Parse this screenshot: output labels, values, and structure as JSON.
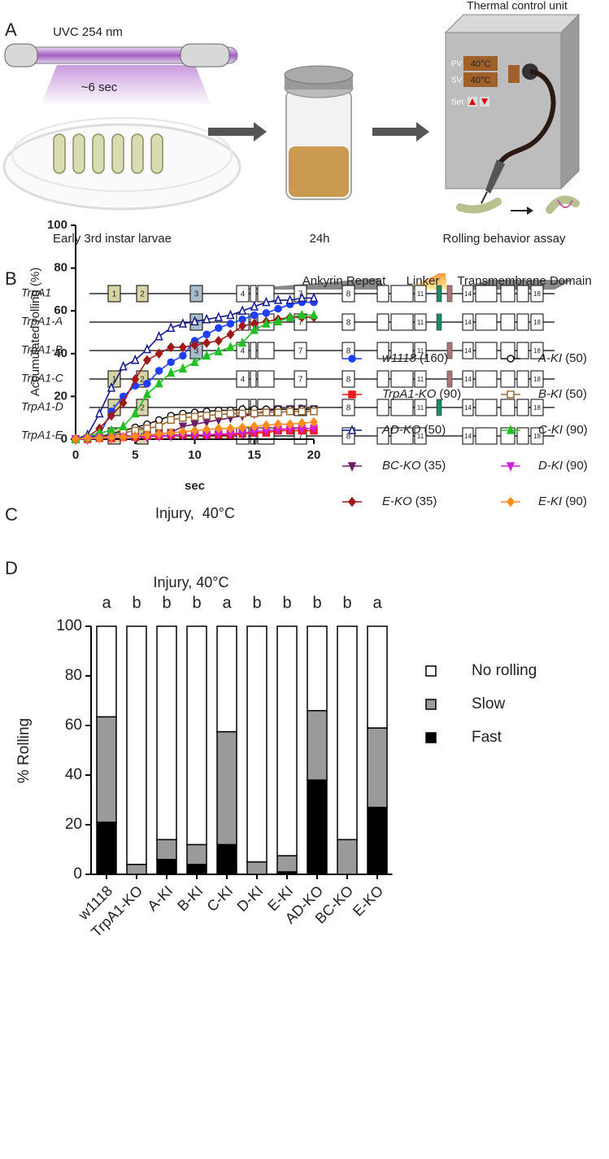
{
  "panel_a": {
    "label": "A",
    "lamp": "UVC 254 nm",
    "exposure": "~6 sec",
    "larvae": "Early 3rd instar larvae",
    "time": "24h",
    "unit": "Thermal control unit",
    "pv": "PV",
    "pv_value": "40°C",
    "sv": "SV",
    "sv_value": "40°C",
    "set": "Set",
    "assay": "Rolling behavior assay"
  },
  "panel_b": {
    "label": "B",
    "domains": [
      "Ankyrin Repeat",
      "Linker",
      "Transmembrane Domain"
    ],
    "isoforms": [
      {
        "name": "TrpA1",
        "exons": [
          "1",
          "2",
          "3",
          "4",
          "7",
          "8",
          "11",
          "14",
          "18"
        ]
      },
      {
        "name": "TrpA1-A",
        "exons": [
          "3",
          "4",
          "7",
          "8",
          "11",
          "14",
          "18"
        ]
      },
      {
        "name": "TrpA1-B",
        "exons": [
          "3",
          "4",
          "7",
          "8",
          "11",
          "14",
          "18"
        ]
      },
      {
        "name": "TrpA1-C",
        "exons": [
          "1",
          "2",
          "4",
          "7",
          "8",
          "11",
          "14",
          "18"
        ]
      },
      {
        "name": "TrpA1-D",
        "exons": [
          "1",
          "2",
          "4",
          "7",
          "8",
          "11",
          "14",
          "18"
        ]
      },
      {
        "name": "TrpA1-E",
        "exons": [
          "1",
          "2",
          "4",
          "7",
          "8",
          "11",
          "14",
          "18"
        ]
      }
    ]
  },
  "chart_data": [
    {
      "type": "line",
      "panel": "C",
      "title": "Injury,  40°C",
      "x_label": "sec",
      "y_label": "Accumulated rolling (%)",
      "x": [
        0,
        1,
        2,
        3,
        4,
        5,
        6,
        7,
        8,
        9,
        10,
        11,
        12,
        13,
        14,
        15,
        16,
        17,
        18,
        19,
        20
      ],
      "xlim": [
        0,
        20
      ],
      "xticks": [
        0,
        5,
        10,
        15,
        20
      ],
      "ylim": [
        0,
        100
      ],
      "yticks": [
        0,
        20,
        40,
        60,
        80,
        100
      ],
      "series": [
        {
          "name": "w1118",
          "n": "(160)",
          "color": "#1f3fff",
          "marker": "circle",
          "values": [
            0,
            0.5,
            2,
            13,
            20,
            25,
            26,
            32,
            36,
            39,
            46,
            49,
            52,
            54,
            56,
            58,
            59,
            61,
            63,
            64,
            64
          ]
        },
        {
          "name": "TrpA1-KO",
          "n": "(90)",
          "color": "#f01818",
          "marker": "square",
          "values": [
            0,
            0,
            0.5,
            0.5,
            1,
            1,
            1.5,
            1.5,
            2,
            2,
            2,
            2,
            2,
            2,
            2.5,
            3,
            3,
            4,
            4,
            4,
            4
          ]
        },
        {
          "name": "AD-KO",
          "n": "(50)",
          "color": "#141a8c",
          "marker": "triangle-open",
          "values": [
            0,
            2,
            12,
            24,
            34,
            37,
            42,
            48,
            52,
            54,
            55,
            56,
            57,
            58,
            60,
            62,
            64,
            65,
            65,
            66,
            66
          ]
        },
        {
          "name": "BC-KO",
          "n": "(35)",
          "color": "#6a1d6a",
          "marker": "triangle-down",
          "values": [
            0,
            0,
            0.5,
            1,
            1,
            1.5,
            2,
            2.5,
            3,
            6,
            7,
            8,
            9,
            10,
            11,
            12,
            13,
            14,
            14,
            14,
            14
          ]
        },
        {
          "name": "E-KO",
          "n": "(35)",
          "color": "#a01818",
          "marker": "diamond",
          "values": [
            0,
            1,
            5,
            11,
            17,
            28,
            37,
            40,
            43,
            43,
            44,
            45,
            46,
            49,
            53,
            54,
            55,
            56,
            57,
            57,
            57
          ]
        },
        {
          "name": "A-KI",
          "n": "(50)",
          "color": "#111111",
          "marker": "circle-open",
          "values": [
            0,
            0.5,
            1,
            2.5,
            4,
            5.5,
            7,
            9,
            11,
            12,
            12.5,
            13,
            13.5,
            13.5,
            14,
            14,
            14,
            14,
            14,
            14,
            14
          ]
        },
        {
          "name": "B-KI",
          "n": "(50)",
          "color": "#9c6a30",
          "marker": "square-open",
          "values": [
            0,
            0.5,
            1,
            1.5,
            3,
            4,
            5,
            6,
            9,
            10,
            10.5,
            11,
            11.5,
            12,
            12,
            12,
            12.5,
            12.5,
            13,
            13,
            13
          ]
        },
        {
          "name": "C-KI",
          "n": "(90)",
          "color": "#22c022",
          "marker": "triangle",
          "values": [
            0,
            1,
            3,
            4,
            6,
            12,
            21,
            26,
            31,
            33,
            36,
            39,
            41,
            43,
            45,
            51,
            54,
            55,
            57,
            58,
            58
          ]
        },
        {
          "name": "D-KI",
          "n": "(90)",
          "color": "#d020e0",
          "marker": "triangle-down",
          "values": [
            0,
            0,
            0.5,
            0.5,
            1,
            1,
            1,
            1.5,
            1.5,
            2,
            2,
            2,
            2.5,
            2.5,
            3,
            3.5,
            4,
            4.5,
            5,
            5,
            5
          ]
        },
        {
          "name": "E-KI",
          "n": "(90)",
          "color": "#ff8c1a",
          "marker": "diamond",
          "values": [
            0,
            0.5,
            0.5,
            1,
            1,
            1.5,
            2,
            2.5,
            3,
            3.5,
            4,
            4.5,
            5,
            5,
            5.5,
            6,
            6.5,
            7,
            7,
            7.5,
            8
          ]
        }
      ]
    },
    {
      "type": "stacked_bar",
      "panel": "D",
      "title": "Injury, 40°C",
      "y_label": "% Rolling",
      "categories": [
        "w1118",
        "TrpA1-KO",
        "A-KI",
        "B-KI",
        "C-KI",
        "D-KI",
        "E-KI",
        "AD-KO",
        "BC-KO",
        "E-KO"
      ],
      "annotations": [
        "a",
        "b",
        "b",
        "b",
        "a",
        "b",
        "b",
        "b",
        "b",
        "a"
      ],
      "ylim": [
        0,
        100
      ],
      "yticks": [
        0,
        20,
        40,
        60,
        80,
        100
      ],
      "series": [
        {
          "name": "Fast",
          "color": "#000000",
          "values": [
            21,
            0,
            6,
            4,
            12,
            0,
            1,
            38,
            0,
            27
          ]
        },
        {
          "name": "Slow",
          "color": "#9a9a9a",
          "values": [
            42.5,
            4,
            8,
            8,
            45.5,
            5,
            6.5,
            28,
            14,
            32
          ]
        },
        {
          "name": "No rolling",
          "color": "#ffffff",
          "values": [
            36.5,
            96,
            86,
            88,
            42.5,
            95,
            92.5,
            34,
            86,
            41
          ]
        }
      ]
    }
  ]
}
